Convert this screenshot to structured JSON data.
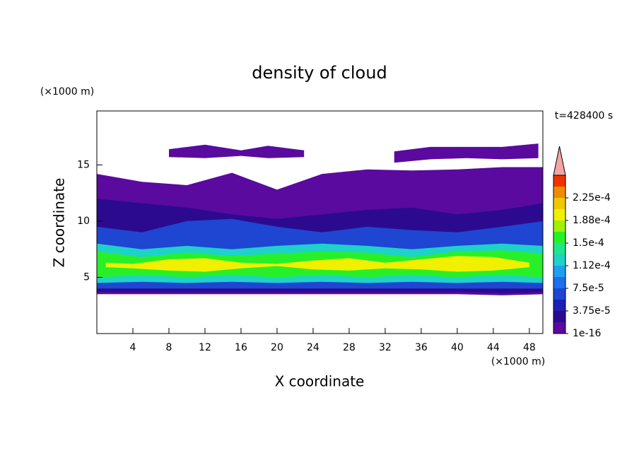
{
  "chart_data": {
    "type": "contour",
    "title": "density of cloud",
    "x_label": "X coordinate",
    "y_label": "Z coordinate",
    "x_unit": "(×1000 m)",
    "y_unit": "(×1000 m)",
    "annotation": "t=428400 s",
    "xlim": [
      0,
      49.5
    ],
    "ylim": [
      0,
      19.8
    ],
    "xticks": [
      4,
      8,
      12,
      16,
      20,
      24,
      28,
      32,
      36,
      40,
      44,
      48
    ],
    "yticks": [
      5,
      10,
      15
    ],
    "colorbar": {
      "lim": [
        1e-16,
        0.0002625
      ],
      "colors": [
        "#5a0a9e",
        "#2c0a90",
        "#1e1eb4",
        "#1e46d2",
        "#1e6ef0",
        "#1ea0f0",
        "#1ed2c8",
        "#1ee68c",
        "#28f028",
        "#a0f000",
        "#f0f000",
        "#f0c800",
        "#f08c00",
        "#f03200"
      ],
      "extend_color": "#f4a4a4",
      "ticks": [
        1e-16,
        {
          "value": 3.75e-05,
          "label": "3.75e-5"
        },
        {
          "value": 7.5e-05,
          "label": "7.5e-5"
        },
        {
          "value": 0.0001125,
          "label": "1.12e-4"
        },
        {
          "value": 0.00015,
          "label": "1.5e-4"
        },
        {
          "value": 0.0001875,
          "label": "1.88e-4"
        },
        {
          "value": 0.000225,
          "label": "2.25e-4"
        }
      ]
    },
    "layers": [
      {
        "level": 0,
        "x": [
          0,
          5,
          10,
          15,
          20,
          25,
          30,
          35,
          40,
          45,
          49.5
        ],
        "bottom": [
          3.5,
          3.5,
          3.5,
          3.5,
          3.5,
          3.5,
          3.5,
          3.5,
          3.5,
          3.4,
          3.5
        ],
        "top": [
          14.2,
          13.5,
          13.2,
          14.3,
          12.8,
          14.2,
          14.6,
          14.5,
          14.6,
          14.8,
          14.8
        ]
      },
      {
        "level": 0,
        "x": [
          8,
          12,
          16,
          19,
          23
        ],
        "bottom": [
          15.7,
          15.6,
          15.8,
          15.6,
          15.7
        ],
        "top": [
          16.4,
          16.8,
          16.3,
          16.7,
          16.3
        ]
      },
      {
        "level": 0,
        "x": [
          33,
          37,
          41,
          45,
          49
        ],
        "bottom": [
          15.2,
          15.5,
          15.6,
          15.5,
          15.6
        ],
        "top": [
          16.2,
          16.6,
          16.6,
          16.6,
          16.9
        ]
      },
      {
        "level": 1,
        "x": [
          0,
          5,
          10,
          15,
          20,
          25,
          30,
          35,
          40,
          45,
          49.5
        ],
        "bottom": [
          3.7,
          3.7,
          3.7,
          3.7,
          3.7,
          3.7,
          3.7,
          3.7,
          3.7,
          3.6,
          3.7
        ],
        "top": [
          12,
          11.6,
          11.2,
          10.6,
          10.2,
          10.6,
          11,
          11.2,
          10.6,
          11,
          11.6
        ]
      },
      {
        "level": 3,
        "x": [
          0,
          5,
          10,
          15,
          20,
          25,
          30,
          35,
          40,
          45,
          49.5
        ],
        "bottom": [
          4,
          4,
          4,
          4,
          4,
          4,
          4,
          4,
          4,
          4,
          4
        ],
        "top": [
          9.5,
          9,
          10,
          10.2,
          9.5,
          9,
          9.5,
          9.2,
          9,
          9.5,
          10
        ]
      },
      {
        "level": 6,
        "x": [
          0,
          5,
          10,
          15,
          20,
          25,
          30,
          35,
          40,
          45,
          49.5
        ],
        "bottom": [
          4.5,
          4.6,
          4.5,
          4.6,
          4.5,
          4.6,
          4.5,
          4.6,
          4.5,
          4.6,
          4.5
        ],
        "top": [
          8,
          7.5,
          7.8,
          7.5,
          7.8,
          8,
          7.8,
          7.5,
          7.8,
          8,
          7.8
        ]
      },
      {
        "level": 8,
        "x": [
          0,
          5,
          10,
          15,
          20,
          25,
          30,
          35,
          40,
          45,
          49.5
        ],
        "bottom": [
          5,
          5.2,
          5,
          5.2,
          5,
          5.2,
          5,
          5.2,
          5,
          5.2,
          5
        ],
        "top": [
          7.3,
          6.8,
          7.2,
          6.9,
          7.1,
          7.3,
          7.2,
          6.8,
          7.3,
          7.4,
          7.1
        ]
      },
      {
        "level": 10,
        "x": [
          1,
          4,
          8,
          12,
          16,
          20,
          24,
          28,
          32,
          36,
          40,
          44,
          48
        ],
        "bottom": [
          5.9,
          5.8,
          5.6,
          5.5,
          5.8,
          6,
          5.7,
          5.6,
          5.8,
          5.7,
          5.5,
          5.6,
          5.9
        ],
        "top": [
          6.3,
          6.2,
          6.6,
          6.7,
          6.3,
          6.2,
          6.5,
          6.7,
          6.3,
          6.6,
          6.9,
          6.8,
          6.3
        ]
      }
    ]
  }
}
